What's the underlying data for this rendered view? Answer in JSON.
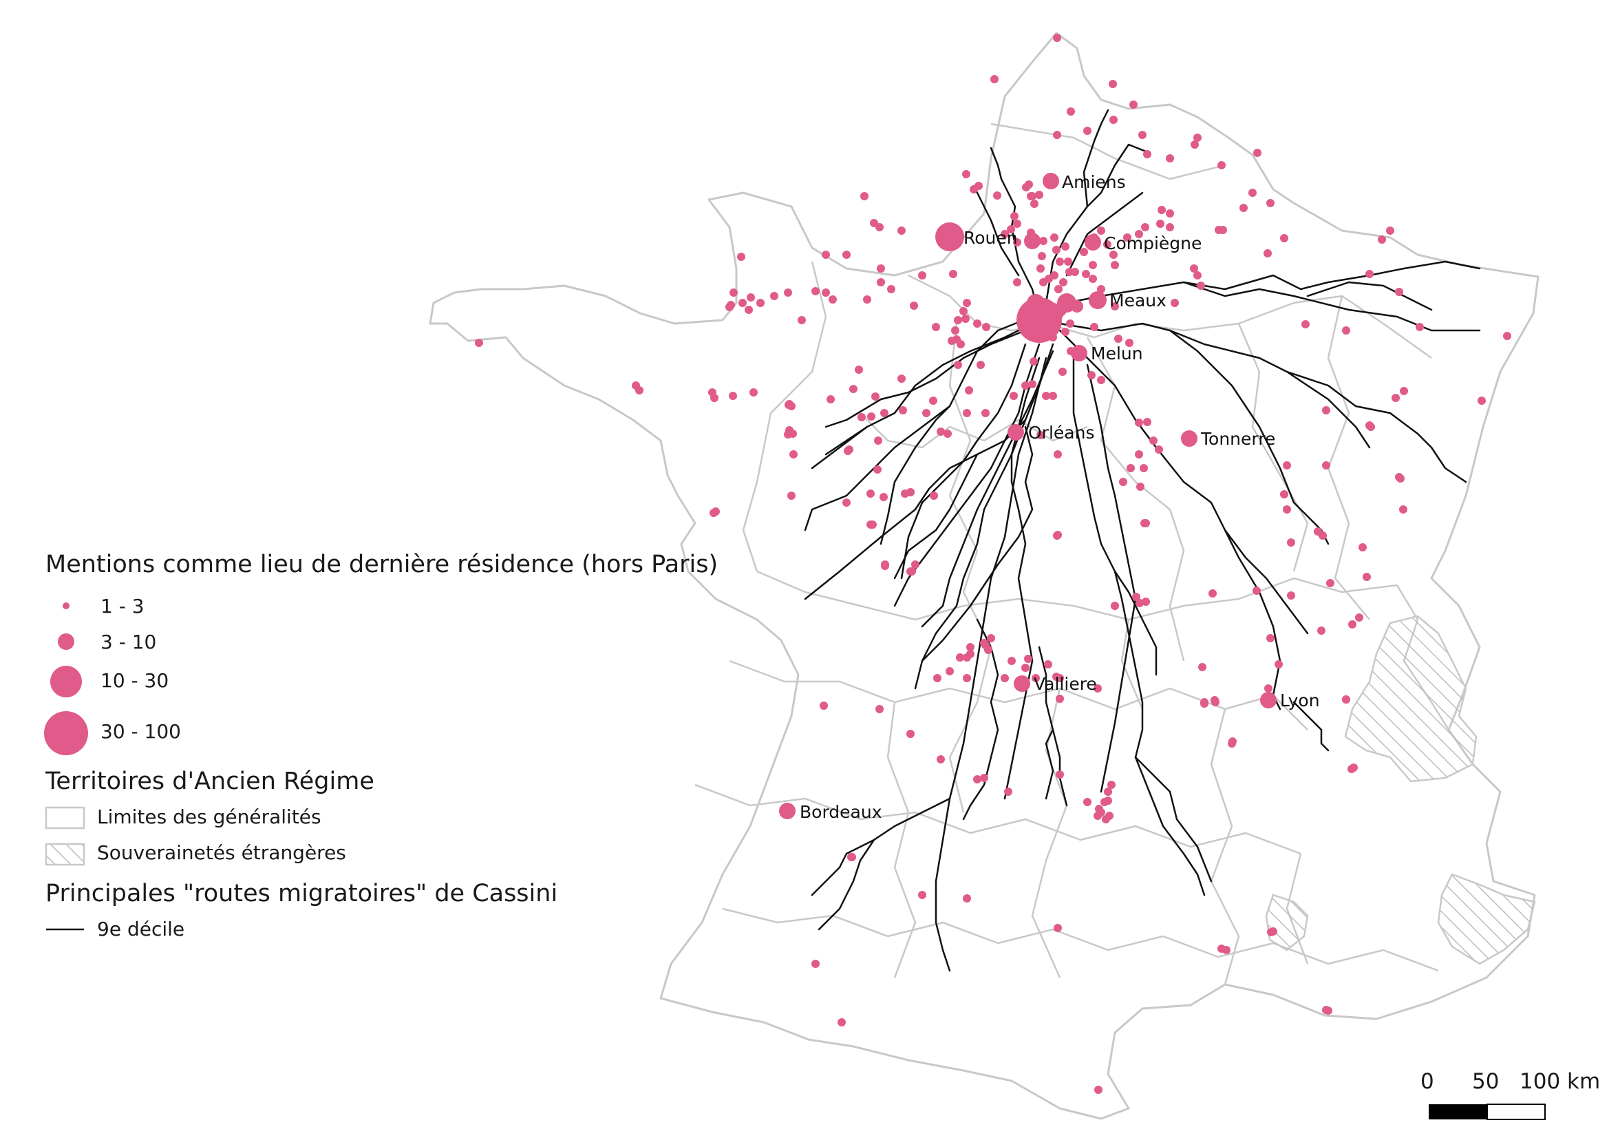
{
  "legend": {
    "mentions_title": "Mentions comme lieu de dernière résidence (hors Paris)",
    "size_classes": [
      {
        "label": "1 - 3"
      },
      {
        "label": "3 - 10"
      },
      {
        "label": "10 - 30"
      },
      {
        "label": "30 - 100"
      }
    ],
    "territories_title": "Territoires d'Ancien Régime",
    "generalites_label": "Limites des généralités",
    "foreign_label": "Souverainetés étrangères",
    "routes_title": "Principales \"routes migratoires\" de Cassini",
    "decile_label": "9e décile"
  },
  "cities": [
    {
      "name": "Amiens",
      "size_class": "3 - 10"
    },
    {
      "name": "Rouen",
      "size_class": "10 - 30"
    },
    {
      "name": "Compiègne",
      "size_class": "3 - 10"
    },
    {
      "name": "Meaux",
      "size_class": "3 - 10"
    },
    {
      "name": "Melun",
      "size_class": "3 - 10"
    },
    {
      "name": "Orléans",
      "size_class": "3 - 10"
    },
    {
      "name": "Tonnerre",
      "size_class": "3 - 10"
    },
    {
      "name": "Valliere",
      "size_class": "3 - 10"
    },
    {
      "name": "Lyon",
      "size_class": "3 - 10"
    },
    {
      "name": "Bordeaux",
      "size_class": "3 - 10"
    }
  ],
  "scale_bar": {
    "ticks": [
      "0",
      "50",
      "100 km"
    ]
  },
  "colors": {
    "point": "#e05a8a",
    "route": "#111111",
    "boundary": "#c8c8c8",
    "hatch": "#bdbdbd"
  }
}
